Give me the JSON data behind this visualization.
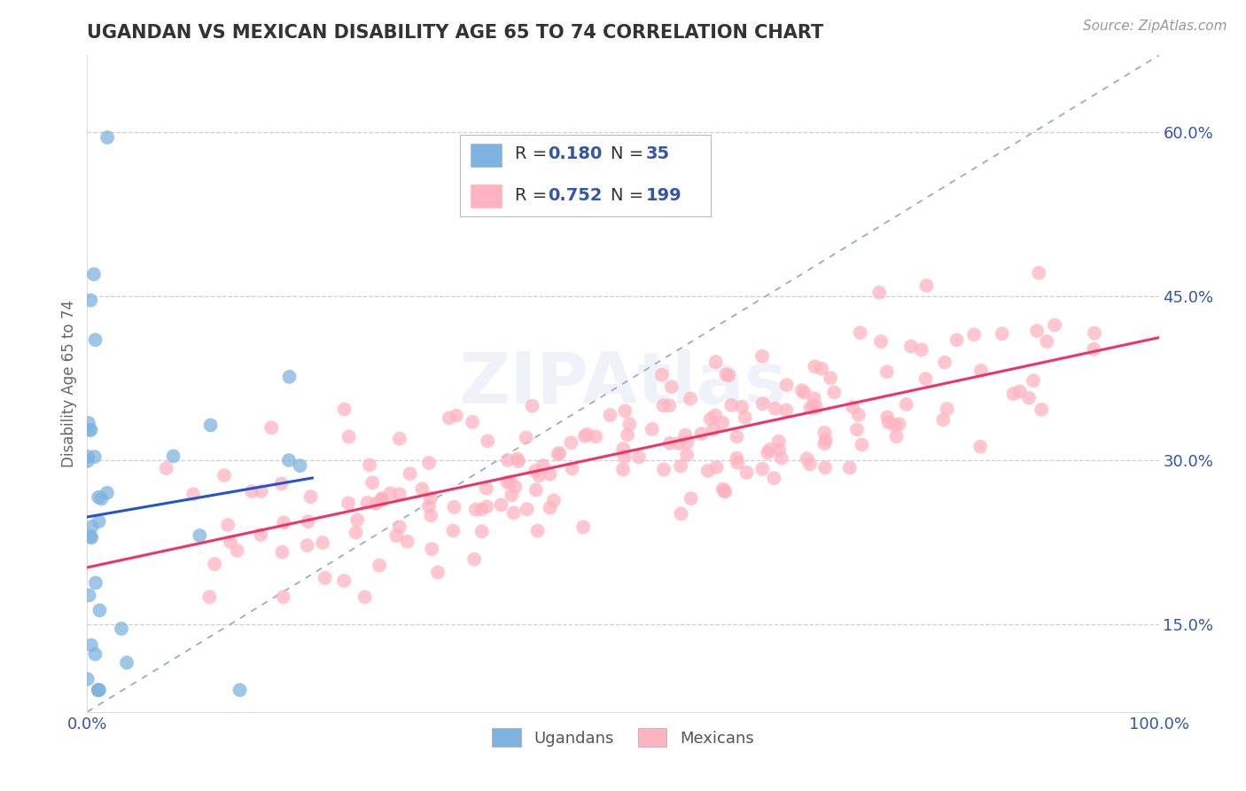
{
  "title": "UGANDAN VS MEXICAN DISABILITY AGE 65 TO 74 CORRELATION CHART",
  "source_text": "Source: ZipAtlas.com",
  "ylabel": "Disability Age 65 to 74",
  "xlim": [
    0.0,
    1.0
  ],
  "ylim": [
    0.07,
    0.67
  ],
  "yticks": [
    0.15,
    0.3,
    0.45,
    0.6
  ],
  "ytick_labels": [
    "15.0%",
    "30.0%",
    "45.0%",
    "60.0%"
  ],
  "xtick_labels": [
    "0.0%",
    "100.0%"
  ],
  "ugandan_color": "#7EB3E0",
  "mexican_color": "#FFB3C1",
  "ugandan_R": 0.18,
  "ugandan_N": 35,
  "mexican_R": 0.752,
  "mexican_N": 199,
  "ugandan_line_color": "#2255CC",
  "mexican_line_color": "#EE3366",
  "ref_line_color": "#99AACC",
  "watermark": "ZIPAtlas",
  "watermark_color": "#AABBDD",
  "background_color": "#FFFFFF",
  "grid_color": "#CCCCDD",
  "title_color": "#333333",
  "axis_label_color": "#666666",
  "tick_color": "#3355AA",
  "legend_text_color": "#333333",
  "legend_val_color": "#3355AA",
  "legend_N_color": "#3355AA"
}
